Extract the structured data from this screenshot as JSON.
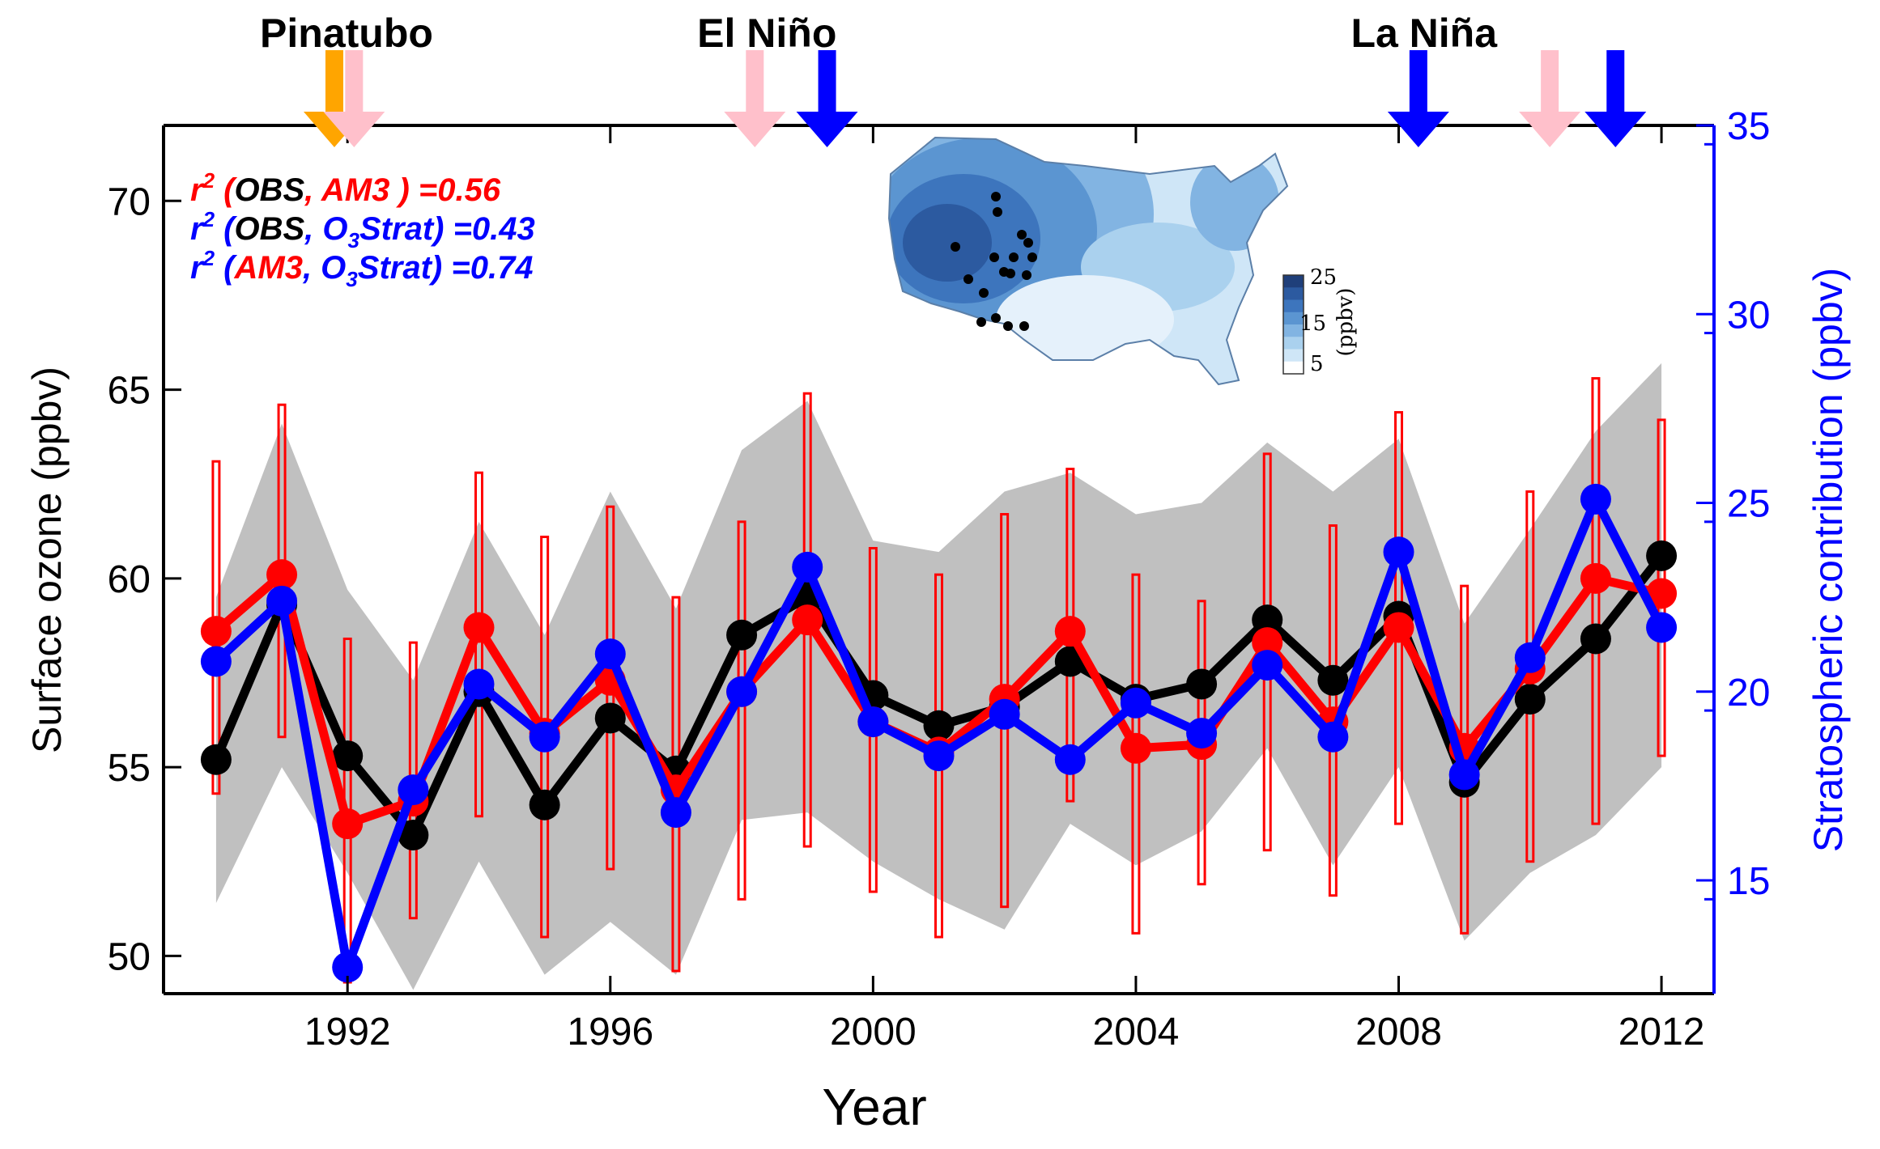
{
  "chart_data": {
    "type": "line",
    "xlabel": "Year",
    "ylabel_left": "Surface ozone (ppbv)",
    "ylabel_right": "Stratospheric contribution (ppbv)",
    "xlim": [
      1989.2,
      2012.8
    ],
    "ylim_left": [
      49,
      72
    ],
    "ylim_right": [
      12,
      35
    ],
    "x_ticks": [
      1992,
      1996,
      2000,
      2004,
      2008,
      2012
    ],
    "y_ticks_left": [
      50,
      55,
      60,
      65,
      70
    ],
    "y_ticks_right": [
      15,
      20,
      25,
      30,
      35
    ],
    "grid": false,
    "years": [
      1990,
      1991,
      1992,
      1993,
      1994,
      1995,
      1996,
      1997,
      1998,
      1999,
      2000,
      2001,
      2002,
      2003,
      2004,
      2005,
      2006,
      2007,
      2008,
      2009,
      2010,
      2011,
      2012
    ],
    "series": [
      {
        "key": "obs",
        "axis": "left",
        "color": "#000000",
        "values": [
          55.2,
          59.3,
          55.3,
          53.2,
          57.0,
          54.0,
          56.3,
          54.9,
          58.5,
          59.5,
          56.9,
          56.1,
          56.6,
          57.8,
          56.8,
          57.2,
          58.9,
          57.3,
          59.0,
          54.6,
          56.8,
          58.4,
          60.6
        ]
      },
      {
        "key": "am3",
        "axis": "left",
        "color": "#ff0000",
        "values": [
          58.6,
          60.1,
          53.5,
          54.1,
          58.7,
          55.9,
          57.3,
          54.4,
          57.0,
          58.9,
          56.2,
          55.4,
          56.8,
          58.6,
          55.5,
          55.6,
          58.3,
          56.2,
          58.7,
          55.5,
          57.6,
          60.0,
          59.6
        ]
      },
      {
        "key": "o3strat",
        "axis": "right",
        "color": "#0000ff",
        "values": [
          20.8,
          22.4,
          12.7,
          17.4,
          20.2,
          18.8,
          21.0,
          16.8,
          20.0,
          23.3,
          19.2,
          18.3,
          19.4,
          18.2,
          19.7,
          18.9,
          20.7,
          18.8,
          23.7,
          17.8,
          20.9,
          25.1,
          21.7
        ]
      }
    ],
    "am3_error_bars": {
      "color": "#ff0000",
      "low": [
        54.3,
        55.8,
        49.3,
        51.0,
        53.7,
        50.5,
        52.3,
        49.6,
        51.5,
        52.9,
        51.7,
        50.5,
        51.3,
        54.1,
        50.6,
        51.9,
        52.8,
        51.6,
        53.5,
        50.6,
        52.5,
        53.5,
        55.3
      ],
      "high": [
        63.1,
        64.6,
        58.4,
        58.3,
        62.8,
        61.1,
        61.9,
        59.5,
        61.5,
        64.9,
        60.8,
        60.1,
        61.7,
        62.9,
        60.1,
        59.4,
        63.3,
        61.4,
        64.4,
        59.8,
        62.3,
        65.3,
        64.2
      ]
    },
    "obs_spread_band": {
      "color": "#c0c0c0",
      "low": [
        51.4,
        55.0,
        52.2,
        49.1,
        52.5,
        49.5,
        50.9,
        49.5,
        53.6,
        53.8,
        52.5,
        51.5,
        50.7,
        53.5,
        52.4,
        53.3,
        55.5,
        52.4,
        55.0,
        50.4,
        52.2,
        53.2,
        55.0
      ],
      "high": [
        59.5,
        64.1,
        59.7,
        57.3,
        61.5,
        58.5,
        62.3,
        59.2,
        63.4,
        64.7,
        61.0,
        60.7,
        62.3,
        62.8,
        61.7,
        62.0,
        63.6,
        62.3,
        63.7,
        58.8,
        61.3,
        63.9,
        65.7
      ]
    },
    "annotations": {
      "line1": {
        "prefix": "r",
        "sup": "2",
        "open": " (",
        "a": "OBS",
        "comma": ", ",
        "b": "AM3",
        "close": " ) =0.56"
      },
      "line2": {
        "prefix": "r",
        "sup": "2",
        "open": " (",
        "a": "OBS",
        "comma": ", ",
        "b_main": "O",
        "b_sub": "3",
        "b_rest": "Strat",
        "close": ") =0.43"
      },
      "line3": {
        "prefix": "r",
        "sup": "2",
        "open": " (",
        "a": "AM3",
        "comma": ", ",
        "b_main": "O",
        "b_sub": "3",
        "b_rest": "Strat",
        "close": ") =0.74"
      }
    },
    "events": [
      {
        "label": "Pinatubo",
        "x": 1991.8
      },
      {
        "label": "El Niño",
        "x": 1998.2
      },
      {
        "label": "La Niña",
        "x": 2008.2
      }
    ],
    "event_arrows": [
      {
        "x": 1991.8,
        "color": "#ffa500"
      },
      {
        "x": 1992.1,
        "color": "#ffc0cb"
      },
      {
        "x": 1998.2,
        "color": "#ffc0cb"
      },
      {
        "x": 1999.3,
        "color": "#0000ff"
      },
      {
        "x": 2008.3,
        "color": "#0000ff"
      },
      {
        "x": 2010.3,
        "color": "#ffc0cb"
      },
      {
        "x": 2011.3,
        "color": "#0000ff"
      }
    ],
    "inset_map": {
      "colorbar": {
        "ticks": [
          "25",
          "15",
          "5"
        ],
        "unit": "(ppbv)",
        "colors": [
          "#1f3f7a",
          "#2c5aa0",
          "#3d75bd",
          "#5b95d1",
          "#82b4e2",
          "#aad1ee",
          "#cfe6f7",
          "#ffffff"
        ]
      }
    }
  }
}
